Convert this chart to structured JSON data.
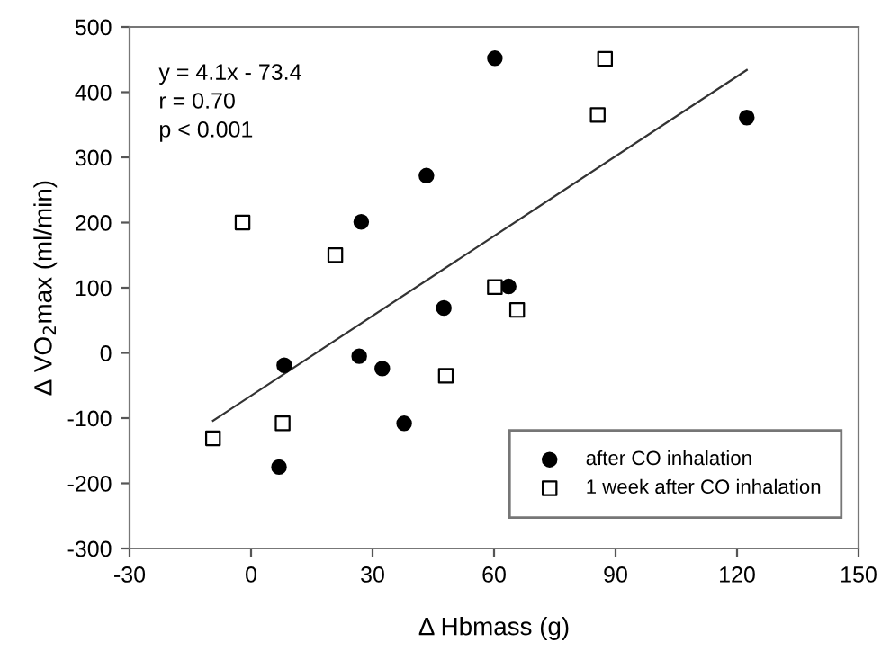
{
  "chart_data": {
    "type": "scatter",
    "xlabel": "Δ Hbmass (g)",
    "ylabel": "Δ VO$_{2}$max (ml/min)",
    "xlim": [
      -30,
      150
    ],
    "xticks": [
      -30,
      0,
      30,
      60,
      90,
      120,
      150
    ],
    "ylim": [
      -300,
      500
    ],
    "yticks": [
      -300,
      -200,
      -100,
      0,
      100,
      200,
      300,
      400,
      500
    ],
    "grid": false,
    "legend": "bottom right",
    "annotations": [
      "y = 4.1x - 73.4",
      "r = 0.70",
      "p < 0.001"
    ],
    "series": [
      {
        "name": "after CO inhalation",
        "marker": "circle",
        "color": "#000000",
        "x": [
          60.2,
          122.4,
          43.3,
          27.2,
          47.6,
          63.6,
          8.2,
          26.7,
          32.4,
          37.8,
          6.9
        ],
        "values": [
          452,
          361,
          272,
          201,
          69,
          102,
          -19,
          -5,
          -24,
          -108,
          -175
        ]
      },
      {
        "name": "1 week after CO inhalation",
        "marker": "square",
        "color": "#ffffff",
        "x": [
          87.4,
          85.6,
          -2.1,
          20.8,
          60.2,
          65.7,
          48.1,
          7.8,
          -9.4
        ],
        "values": [
          451,
          365,
          200,
          150,
          101,
          66,
          -35,
          -108,
          -131
        ]
      },
      {
        "type": "line",
        "color": "#333333",
        "line_style": "solid",
        "marker": "none",
        "x": [
          -9.4,
          122.4
        ],
        "values": [
          -104,
          434
        ]
      }
    ]
  }
}
